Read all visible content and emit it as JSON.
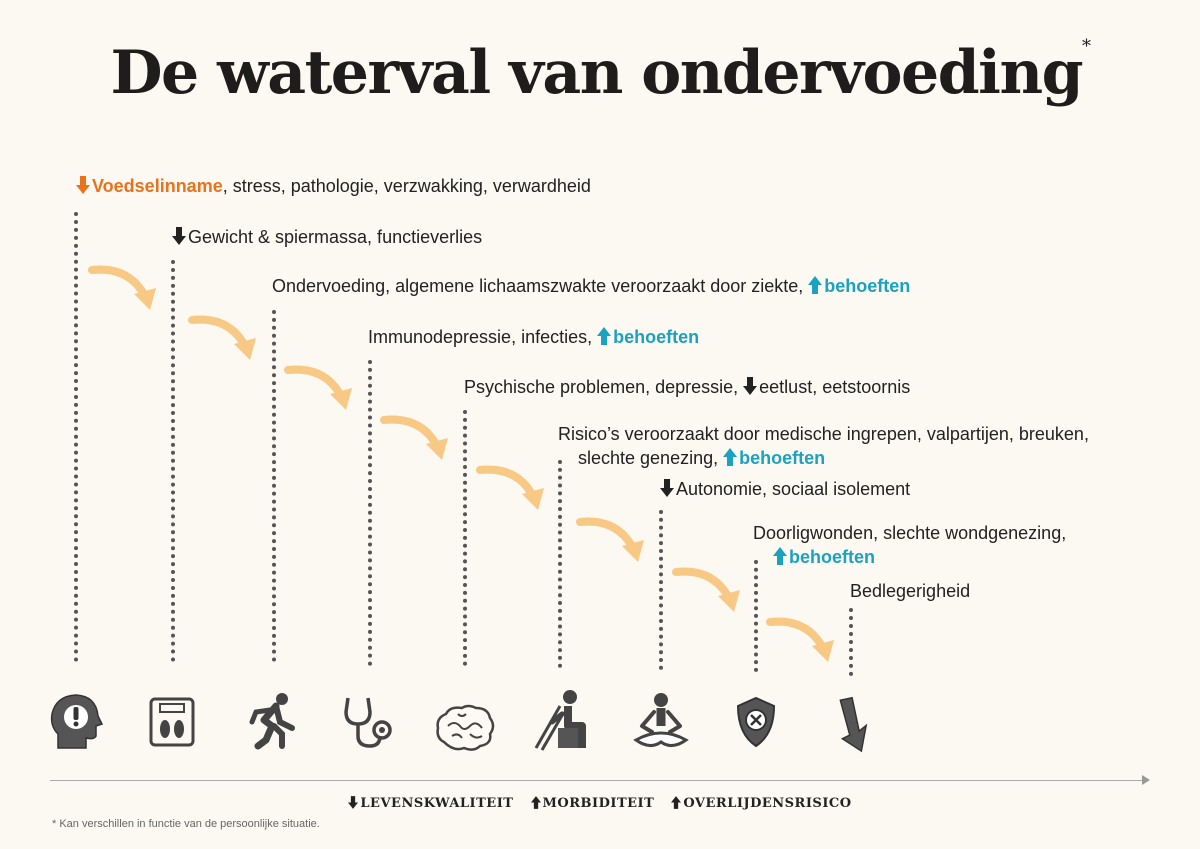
{
  "title": "De waterval van ondervoeding",
  "title_mark": "*",
  "steps": [
    {
      "pre": "",
      "highlight": "Voedselinname",
      "post": ", stress, pathologie, verzwakking, verwardheid"
    },
    {
      "text": "Gewicht & spiermassa, functieverlies"
    },
    {
      "text": "Ondervoeding, algemene lichaamszwakte veroorzaakt door ziekte,",
      "highlight": "behoeften"
    },
    {
      "text": "Immunodepressie, infecties,",
      "highlight": "behoeften"
    },
    {
      "text1": "Psychische problemen, depressie,",
      "text2": "eetlust, eetstoornis"
    },
    {
      "line1": "Risico’s veroorzaakt door medische ingrepen, valpartijen, breuken,",
      "line2": "slechte genezing,",
      "highlight": "behoeften"
    },
    {
      "text": "Autonomie, sociaal isolement"
    },
    {
      "line1": "Doorligwonden, slechte wondgenezing,",
      "highlight": "behoeften"
    },
    {
      "text": "Bedlegerigheid"
    }
  ],
  "icons": [
    "head-warning-icon",
    "weighing-scale-icon",
    "running-person-icon",
    "stethoscope-icon",
    "brain-icon",
    "person-with-crutches-icon",
    "meditating-person-icon",
    "shield-cross-icon",
    "down-arrow-icon"
  ],
  "legend": {
    "item1": "LEVENSKWALITEIT",
    "item2": "MORBIDITEIT",
    "item3": "OVERLIJDENSRISICO"
  },
  "footnote": "* Kan verschillen in functie van de persoonlijke situatie.",
  "colors": {
    "orange": "#e8731c",
    "blue": "#1aa2c0",
    "curve": "#f8c985",
    "background": "#fcf8f2"
  }
}
